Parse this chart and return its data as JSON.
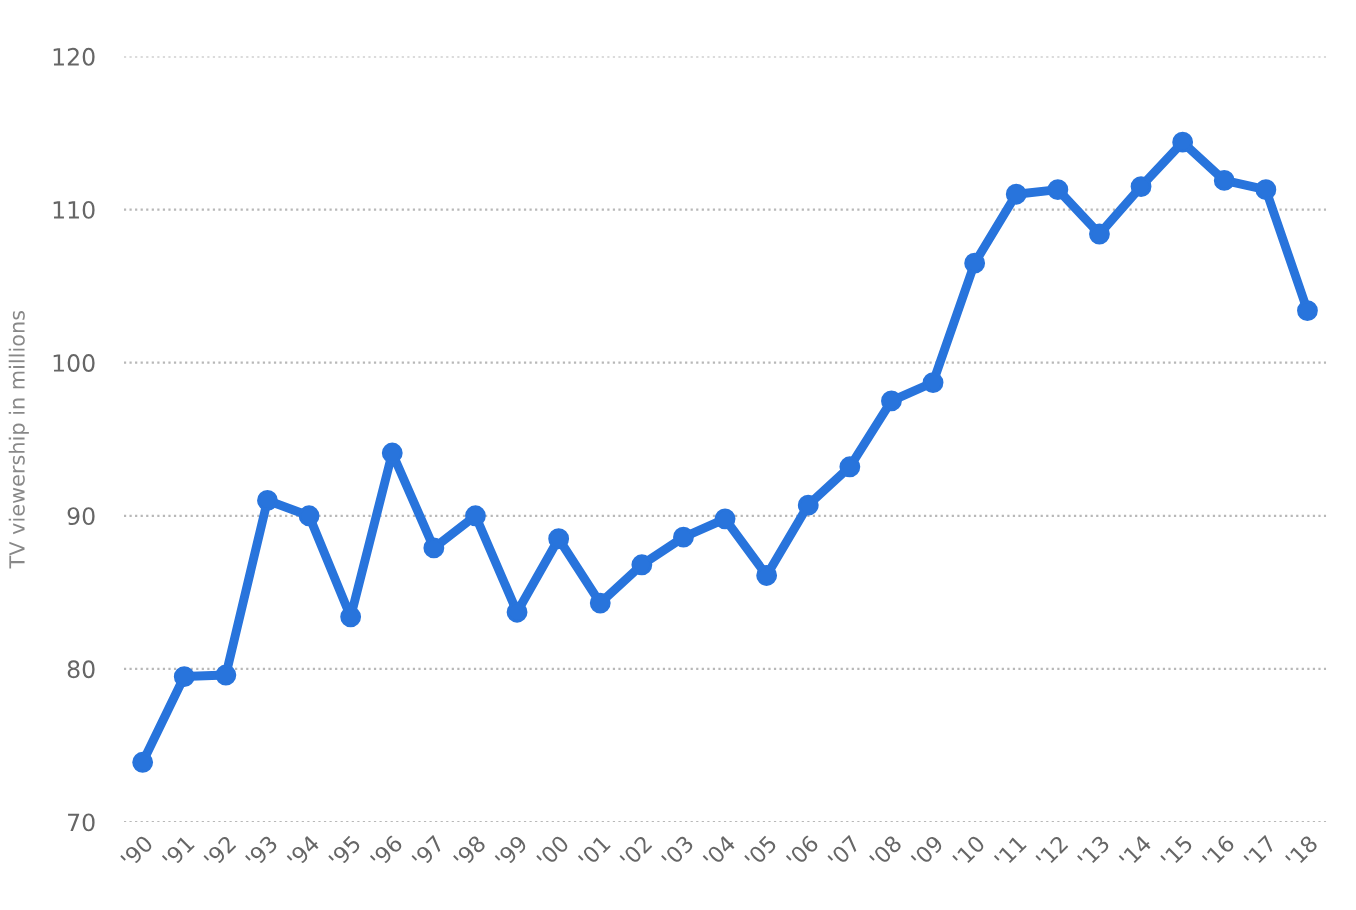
{
  "chart_data": {
    "type": "line",
    "ylabel": "TV viewership in millions",
    "categories": [
      "'90",
      "'91",
      "'92",
      "'93",
      "'94",
      "'95",
      "'96",
      "'97",
      "'98",
      "'99",
      "'00",
      "'01",
      "'02",
      "'03",
      "'04",
      "'05",
      "'06",
      "'07",
      "'08",
      "'09",
      "'10",
      "'11",
      "'12",
      "'13",
      "'14",
      "'15",
      "'16",
      "'17",
      "'18"
    ],
    "series": [
      {
        "color": "#2874dc",
        "values": [
          73.9,
          79.5,
          79.6,
          91.0,
          90.0,
          83.4,
          94.1,
          87.9,
          90.0,
          83.7,
          88.5,
          84.3,
          86.8,
          88.6,
          89.8,
          86.1,
          90.7,
          93.2,
          97.5,
          98.7,
          106.5,
          111.0,
          111.3,
          108.4,
          111.5,
          114.4,
          111.9,
          111.3,
          103.4
        ]
      }
    ],
    "ylim": [
      70,
      120
    ],
    "yticks": [
      70,
      80,
      90,
      100,
      110,
      120
    ],
    "grid": "y",
    "legend": false,
    "marker": "circle",
    "line_style": "solid"
  }
}
